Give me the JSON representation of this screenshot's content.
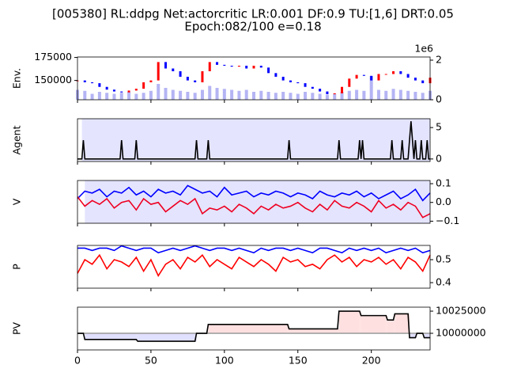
{
  "chart_data": [
    {
      "type": "candlestick",
      "title": "[005380] RL:ddpg Net:actorcritic LR:0.001 DF:0.9 TU:[1,6] DRT:0.05",
      "subtitle": "Epoch:082/100 e=0.18",
      "ylabel": "Env.",
      "x": [
        0,
        5,
        10,
        15,
        20,
        25,
        30,
        35,
        40,
        45,
        50,
        55,
        60,
        65,
        70,
        75,
        80,
        85,
        90,
        95,
        100,
        105,
        110,
        115,
        120,
        125,
        130,
        135,
        140,
        145,
        150,
        155,
        160,
        165,
        170,
        175,
        180,
        185,
        190,
        195,
        200,
        205,
        210,
        215,
        220,
        225,
        230,
        235,
        240
      ],
      "values": [
        150000,
        148000,
        147000,
        143000,
        140000,
        138000,
        137000,
        139000,
        141000,
        148000,
        150000,
        170000,
        163000,
        160000,
        154000,
        150000,
        148000,
        160000,
        170000,
        167000,
        166000,
        165000,
        166000,
        163000,
        166000,
        164000,
        158000,
        154000,
        150000,
        148000,
        147000,
        143000,
        141000,
        138000,
        135000,
        136000,
        143000,
        152000,
        156000,
        155000,
        150000,
        157000,
        157000,
        160000,
        157000,
        153000,
        150000,
        147000,
        153000
      ],
      "up_color": "#ff0000",
      "down_color": "#0000ff",
      "volume": [
        500000,
        450000,
        300000,
        400000,
        350000,
        300000,
        350000,
        400000,
        300000,
        350000,
        450000,
        800000,
        600000,
        500000,
        450000,
        400000,
        350000,
        500000,
        700000,
        600000,
        550000,
        500000,
        450000,
        500000,
        400000,
        450000,
        400000,
        350000,
        400000,
        350000,
        300000,
        400000,
        350000,
        300000,
        250000,
        300000,
        400000,
        450000,
        500000,
        450000,
        1200000,
        500000,
        450000,
        550000,
        500000,
        450000,
        400000,
        350000,
        450000
      ],
      "volume_color": "#b4b4f4",
      "xlim": [
        0,
        240
      ],
      "ylim": [
        129000,
        175500
      ],
      "yticks": [
        150000,
        175000
      ],
      "y2lim": [
        0,
        2160000
      ],
      "y2ticks": [
        0,
        {
          "value": 2000000,
          "label": "2"
        }
      ],
      "y2offset": "1e6"
    },
    {
      "type": "line",
      "ylabel": "Agent",
      "background": "#e4e4ff",
      "x": [
        0,
        3,
        4,
        5,
        29,
        30,
        31,
        39,
        40,
        41,
        80,
        81,
        82,
        88,
        89,
        90,
        143,
        144,
        145,
        177,
        178,
        179,
        191,
        192,
        193,
        194,
        195,
        213,
        214,
        215,
        220,
        221,
        222,
        225,
        227,
        229,
        230,
        231,
        233,
        234,
        235,
        237,
        238,
        239,
        240
      ],
      "series": [
        {
          "color": "#000000",
          "values": [
            0,
            0,
            3,
            0,
            0,
            3,
            0,
            0,
            3,
            0,
            0,
            3,
            0,
            0,
            3,
            0,
            0,
            3,
            0,
            0,
            3,
            0,
            0,
            3,
            0,
            3,
            0,
            0,
            3,
            0,
            0,
            3,
            0,
            0,
            6,
            0,
            3,
            0,
            0,
            3,
            0,
            0,
            3,
            0,
            0
          ]
        }
      ],
      "xlim": [
        0,
        240
      ],
      "ylim": [
        -0.4,
        6.4
      ],
      "yticks": [
        0,
        5
      ]
    },
    {
      "type": "line",
      "ylabel": "V",
      "background": "#e4e4ff",
      "x": [
        0,
        5,
        10,
        15,
        20,
        25,
        30,
        35,
        40,
        45,
        50,
        55,
        60,
        65,
        70,
        75,
        80,
        85,
        90,
        95,
        100,
        105,
        110,
        115,
        120,
        125,
        130,
        135,
        140,
        145,
        150,
        155,
        160,
        165,
        170,
        175,
        180,
        185,
        190,
        195,
        200,
        205,
        210,
        215,
        220,
        225,
        230,
        235,
        240
      ],
      "series": [
        {
          "color": "#0000ff",
          "values": [
            0.02,
            0.06,
            0.05,
            0.07,
            0.03,
            0.06,
            0.05,
            0.08,
            0.04,
            0.06,
            0.03,
            0.07,
            0.05,
            0.06,
            0.04,
            0.09,
            0.07,
            0.05,
            0.06,
            0.03,
            0.08,
            0.04,
            0.05,
            0.06,
            0.03,
            0.05,
            0.04,
            0.06,
            0.05,
            0.03,
            0.05,
            0.04,
            0.02,
            0.06,
            0.04,
            0.03,
            0.05,
            0.04,
            0.06,
            0.03,
            0.05,
            0.02,
            0.04,
            0.06,
            0.02,
            0.04,
            0.07,
            0.01,
            0.05
          ]
        },
        {
          "color": "#ee0022",
          "values": [
            0.03,
            -0.02,
            0.01,
            -0.01,
            0.02,
            -0.03,
            0.0,
            0.01,
            -0.04,
            0.02,
            -0.01,
            0.0,
            -0.05,
            -0.02,
            0.01,
            -0.01,
            0.02,
            -0.06,
            -0.03,
            -0.04,
            -0.02,
            -0.05,
            -0.01,
            -0.03,
            -0.06,
            -0.02,
            -0.04,
            -0.01,
            -0.03,
            -0.02,
            0.0,
            -0.03,
            -0.05,
            -0.01,
            -0.04,
            0.01,
            -0.02,
            -0.03,
            0.0,
            -0.02,
            -0.05,
            0.01,
            -0.03,
            -0.01,
            -0.04,
            0.0,
            -0.02,
            -0.08,
            -0.06
          ]
        }
      ],
      "xlim": [
        0,
        240
      ],
      "ylim": [
        -0.111,
        0.117
      ],
      "yticks": [
        0.1,
        {
          "value": 0,
          "label": "0.0"
        },
        {
          "value": -0.1,
          "label": "−0.1"
        }
      ]
    },
    {
      "type": "line",
      "ylabel": "P",
      "x": [
        0,
        5,
        10,
        15,
        20,
        25,
        30,
        35,
        40,
        45,
        50,
        55,
        60,
        65,
        70,
        75,
        80,
        85,
        90,
        95,
        100,
        105,
        110,
        115,
        120,
        125,
        130,
        135,
        140,
        145,
        150,
        155,
        160,
        165,
        170,
        175,
        180,
        185,
        190,
        195,
        200,
        205,
        210,
        215,
        220,
        225,
        230,
        235,
        240
      ],
      "series": [
        {
          "color": "#0000ff",
          "values": [
            0.55,
            0.55,
            0.54,
            0.55,
            0.55,
            0.54,
            0.56,
            0.55,
            0.54,
            0.55,
            0.55,
            0.53,
            0.54,
            0.55,
            0.54,
            0.55,
            0.56,
            0.55,
            0.54,
            0.55,
            0.55,
            0.54,
            0.55,
            0.54,
            0.53,
            0.55,
            0.54,
            0.55,
            0.55,
            0.54,
            0.55,
            0.54,
            0.53,
            0.55,
            0.55,
            0.54,
            0.53,
            0.55,
            0.54,
            0.55,
            0.54,
            0.55,
            0.53,
            0.54,
            0.55,
            0.54,
            0.55,
            0.53,
            0.54
          ]
        },
        {
          "color": "#ff0000",
          "values": [
            0.44,
            0.5,
            0.48,
            0.52,
            0.46,
            0.5,
            0.49,
            0.47,
            0.51,
            0.45,
            0.5,
            0.43,
            0.48,
            0.5,
            0.46,
            0.51,
            0.49,
            0.52,
            0.47,
            0.5,
            0.48,
            0.46,
            0.51,
            0.49,
            0.47,
            0.5,
            0.48,
            0.45,
            0.51,
            0.49,
            0.5,
            0.47,
            0.48,
            0.46,
            0.5,
            0.52,
            0.49,
            0.51,
            0.47,
            0.5,
            0.49,
            0.51,
            0.48,
            0.5,
            0.46,
            0.51,
            0.49,
            0.45,
            0.52
          ]
        }
      ],
      "xlim": [
        0,
        240
      ],
      "ylim": [
        0.376,
        0.562
      ],
      "yticks": [
        0.5,
        0.4
      ]
    },
    {
      "type": "area",
      "ylabel": "PV",
      "x": [
        0,
        4,
        5,
        40,
        41,
        80,
        81,
        88,
        89,
        143,
        144,
        177,
        178,
        192,
        193,
        210,
        211,
        215,
        216,
        225,
        226,
        230,
        231,
        235,
        236,
        240
      ],
      "series": [
        {
          "color": "#000000",
          "values": [
            10000000,
            10000000,
            9993000,
            9993000,
            9991000,
            9991000,
            10000000,
            10000000,
            10010000,
            10010000,
            10005000,
            10005000,
            10025000,
            10025000,
            10020000,
            10020000,
            10015000,
            10015000,
            10022000,
            10022000,
            9995000,
            9995000,
            10000000,
            10000000,
            9995000,
            9995000
          ]
        }
      ],
      "baseline": 10000000,
      "fill_above": "#ffe0e0",
      "fill_below": "#e0e0ff",
      "xlim": [
        0,
        240
      ],
      "ylim": [
        9981250,
        10029500
      ],
      "yticks": [
        10000000,
        10025000
      ],
      "xticks": [
        0,
        50,
        100,
        150,
        200
      ]
    }
  ]
}
